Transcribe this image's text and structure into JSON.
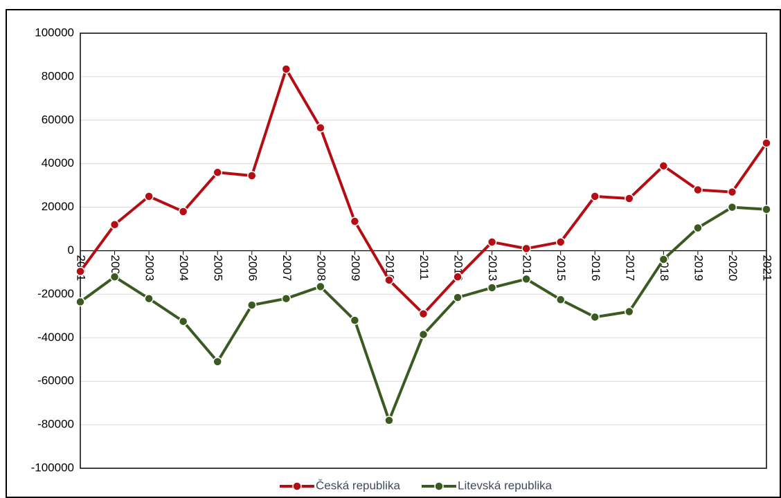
{
  "chart_data": {
    "type": "line",
    "categories": [
      "2001",
      "2002",
      "2003",
      "2004",
      "2005",
      "2006",
      "2007",
      "2008",
      "2009",
      "2010",
      "2011",
      "2012",
      "2013",
      "2014",
      "2015",
      "2016",
      "2017",
      "2018",
      "2019",
      "2020",
      "2021"
    ],
    "series": [
      {
        "name": "Česká republika",
        "color": "#b50d14",
        "values": [
          -9500,
          12000,
          25000,
          18000,
          36000,
          34500,
          83500,
          56500,
          13500,
          -13500,
          -29000,
          -12000,
          4000,
          1000,
          4000,
          25000,
          24000,
          39000,
          28000,
          27000,
          49500
        ]
      },
      {
        "name": "Litevská republika",
        "color": "#3a5a22",
        "values": [
          -23500,
          -12000,
          -22000,
          -32500,
          -51000,
          -25000,
          -22000,
          -16500,
          -32000,
          -78000,
          -38500,
          -21500,
          -17000,
          -13000,
          -22500,
          -30500,
          -28000,
          -4000,
          10500,
          20000,
          19000
        ]
      }
    ],
    "ylim": [
      -100000,
      100000
    ],
    "yticks": [
      -100000,
      -80000,
      -60000,
      -40000,
      -20000,
      0,
      20000,
      40000,
      60000,
      80000,
      100000
    ],
    "grid": true,
    "legend": "bottom"
  }
}
